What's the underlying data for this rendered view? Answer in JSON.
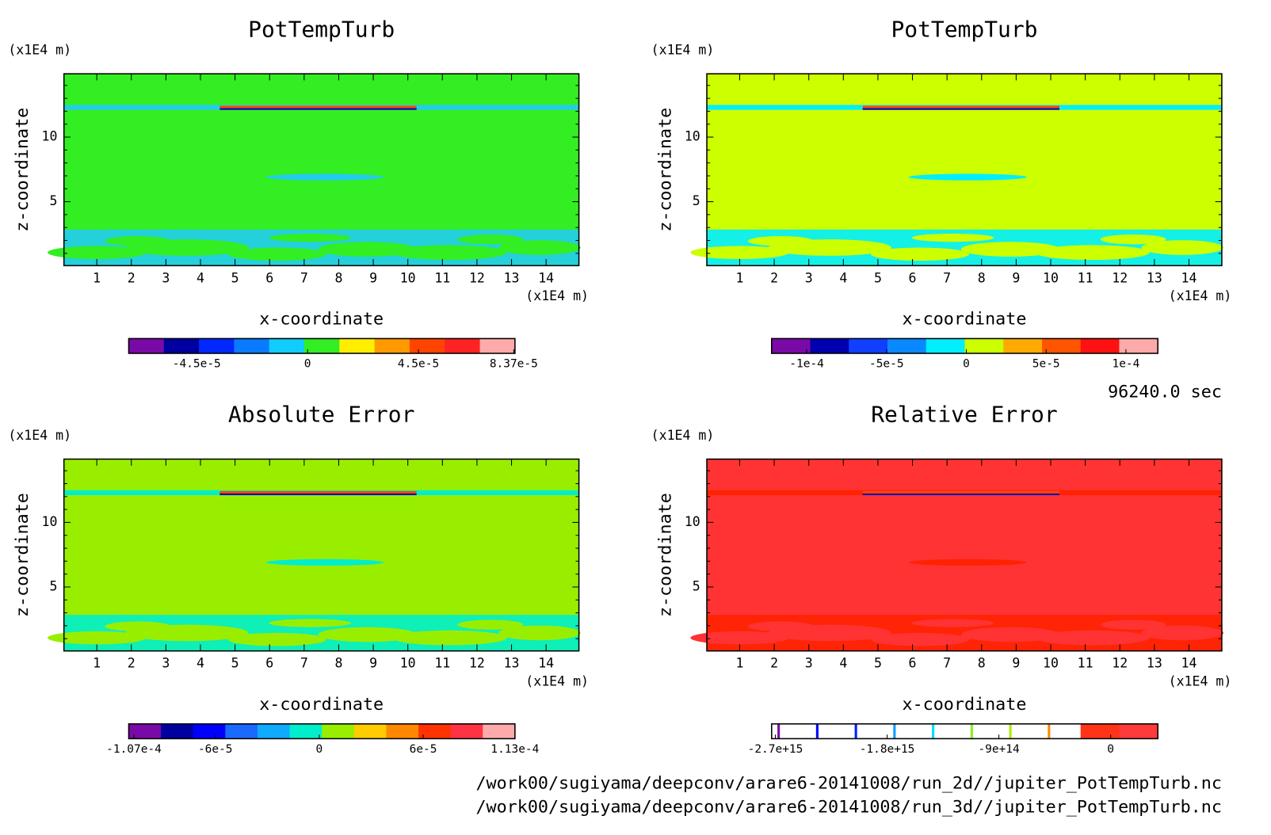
{
  "chart_data": [
    {
      "type": "contour",
      "title": "PotTempTurb",
      "xlabel": "x-coordinate",
      "ylabel": "z-coordinate",
      "x_unit": "(x1E4 m)",
      "y_unit": "(x1E4 m)",
      "xlim": [
        0.05,
        14.95
      ],
      "ylim": [
        0.05,
        14.9
      ],
      "xticks": [
        1,
        2,
        3,
        4,
        5,
        6,
        7,
        8,
        9,
        10,
        11,
        12,
        13,
        14
      ],
      "yticks": [
        5,
        10
      ],
      "yminor_ticks": [
        1,
        2,
        3,
        4,
        6,
        7,
        8,
        9,
        11,
        12,
        13,
        14
      ],
      "background": "#33ee22",
      "feature_color": "#22ccee",
      "colorbar": {
        "colors": [
          "#7a0aa8",
          "#0000a0",
          "#0028ff",
          "#0a7aff",
          "#10ccff",
          "#33ee22",
          "#ffee00",
          "#ff9900",
          "#ff4400",
          "#ff2222",
          "#ffaaaa"
        ],
        "lim": [
          -7.26e-05,
          8.42e-05
        ],
        "ticks": [
          {
            "value": -4.5e-05,
            "label": "-4.5e-5"
          },
          0,
          {
            "value": 4.5e-05,
            "label": "4.5e-5"
          },
          {
            "value": 8.37e-05,
            "label": "8.37e-5"
          }
        ]
      }
    },
    {
      "type": "contour",
      "title": "PotTempTurb",
      "xlabel": "x-coordinate",
      "ylabel": "z-coordinate",
      "x_unit": "(x1E4 m)",
      "y_unit": "(x1E4 m)",
      "xlim": [
        0.05,
        14.95
      ],
      "ylim": [
        0.05,
        14.9
      ],
      "xticks": [
        1,
        2,
        3,
        4,
        5,
        6,
        7,
        8,
        9,
        10,
        11,
        12,
        13,
        14
      ],
      "yticks": [
        5,
        10
      ],
      "yminor_ticks": [
        1,
        2,
        3,
        4,
        6,
        7,
        8,
        9,
        11,
        12,
        13,
        14
      ],
      "background": "#ccff00",
      "feature_color": "#00eeff",
      "colorbar": {
        "colors": [
          "#7a0aa8",
          "#0000b0",
          "#1040ff",
          "#0a88ff",
          "#00eeff",
          "#ccff00",
          "#ffaa00",
          "#ff5500",
          "#ff1111",
          "#ffaaaa"
        ],
        "lim": [
          -0.000122,
          0.00012
        ],
        "ticks": [
          {
            "value": -0.0001,
            "label": "-1e-4"
          },
          {
            "value": -5e-05,
            "label": "-5e-5"
          },
          0,
          {
            "value": 5e-05,
            "label": "5e-5"
          },
          {
            "value": 0.0001,
            "label": "1e-4"
          }
        ]
      }
    },
    {
      "type": "contour",
      "title": "Absolute Error",
      "xlabel": "x-coordinate",
      "ylabel": "z-coordinate",
      "x_unit": "(x1E4 m)",
      "y_unit": "(x1E4 m)",
      "xlim": [
        0.05,
        14.95
      ],
      "ylim": [
        0.05,
        14.9
      ],
      "xticks": [
        1,
        2,
        3,
        4,
        5,
        6,
        7,
        8,
        9,
        10,
        11,
        12,
        13,
        14
      ],
      "yticks": [
        5,
        10
      ],
      "yminor_ticks": [
        1,
        2,
        3,
        4,
        6,
        7,
        8,
        9,
        11,
        12,
        13,
        14
      ],
      "background": "#99ee00",
      "feature_color": "#00eecc",
      "colorbar": {
        "colors": [
          "#7a0aa8",
          "#0000a0",
          "#0000ff",
          "#1a6aff",
          "#10aaff",
          "#00eecc",
          "#99ee00",
          "#ffcc00",
          "#ff8800",
          "#ff3300",
          "#ff3344",
          "#ffaaaa"
        ],
        "lim": [
          -0.00011,
          0.000113
        ],
        "ticks": [
          {
            "value": -0.000107,
            "label": "-1.07e-4"
          },
          {
            "value": -6e-05,
            "label": "-6e-5"
          },
          0,
          {
            "value": 6e-05,
            "label": "6e-5"
          },
          {
            "value": 0.000113,
            "label": "1.13e-4"
          }
        ]
      }
    },
    {
      "type": "contour",
      "title": "Relative Error",
      "xlabel": "x-coordinate",
      "ylabel": "z-coordinate",
      "x_unit": "(x1E4 m)",
      "y_unit": "(x1E4 m)",
      "xlim": [
        0.05,
        14.95
      ],
      "ylim": [
        0.05,
        14.9
      ],
      "xticks": [
        1,
        2,
        3,
        4,
        5,
        6,
        7,
        8,
        9,
        10,
        11,
        12,
        13,
        14
      ],
      "yticks": [
        5,
        10
      ],
      "yminor_ticks": [
        1,
        2,
        3,
        4,
        6,
        7,
        8,
        9,
        11,
        12,
        13,
        14
      ],
      "background": "#ff3333",
      "feature_color": "#ff2200",
      "colorbar": {
        "colors": [
          "#ffffff",
          "#ffffff",
          "#ffffff",
          "#ffffff",
          "#ffffff",
          "#ffffff",
          "#ffffff",
          "#ffffff",
          "#ff3318",
          "#ff3a3a"
        ],
        "edge_colors": [
          "#7a0aa8",
          "#0000ff",
          "#0022ff",
          "#0aa0ff",
          "#00ddff",
          "#88ee22",
          "#aaee00",
          "#ff8800"
        ],
        "lim": [
          -2730000000000000.0,
          380000000000000.0
        ],
        "ticks": [
          {
            "value": -2700000000000000.0,
            "label": "-2.7e+15"
          },
          {
            "value": -1800000000000000.0,
            "label": "-1.8e+15"
          },
          {
            "value": -900000000000000.0,
            "label": "-9e+14"
          },
          0
        ]
      }
    }
  ],
  "time": "96240.0 sec",
  "files": [
    "/work00/sugiyama/deepconv/arare6-20141008/run_2d//jupiter_PotTempTurb.nc",
    "/work00/sugiyama/deepconv/arare6-20141008/run_3d//jupiter_PotTempTurb.nc"
  ]
}
